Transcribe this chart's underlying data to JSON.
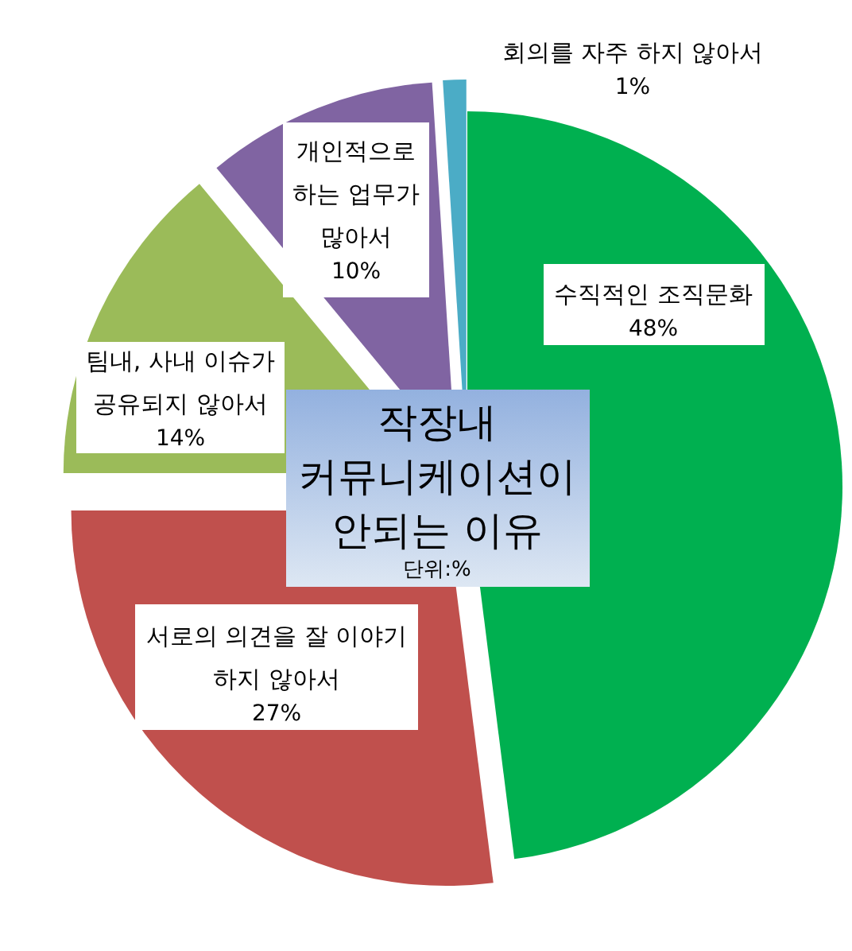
{
  "chart_data": {
    "type": "pie",
    "title": "작장내 커뮤니케이션이 안되는 이유",
    "subtitle": "단위:%",
    "categories": [
      "수직적인 조직문화",
      "서로의 의견을 잘 이야기 하지 않아서",
      "팀내, 사내 이슈가 공유되지 않아서",
      "개인적으로 하는 업무가 많아서",
      "회의를 자주 하지 않아서"
    ],
    "values": [
      48,
      27,
      14,
      10,
      1
    ],
    "colors": [
      "#00b050",
      "#c0504d",
      "#9bbb59",
      "#8064a2",
      "#4bacc6"
    ],
    "value_labels": [
      "48%",
      "27%",
      "14%",
      "10%",
      "1%"
    ]
  }
}
